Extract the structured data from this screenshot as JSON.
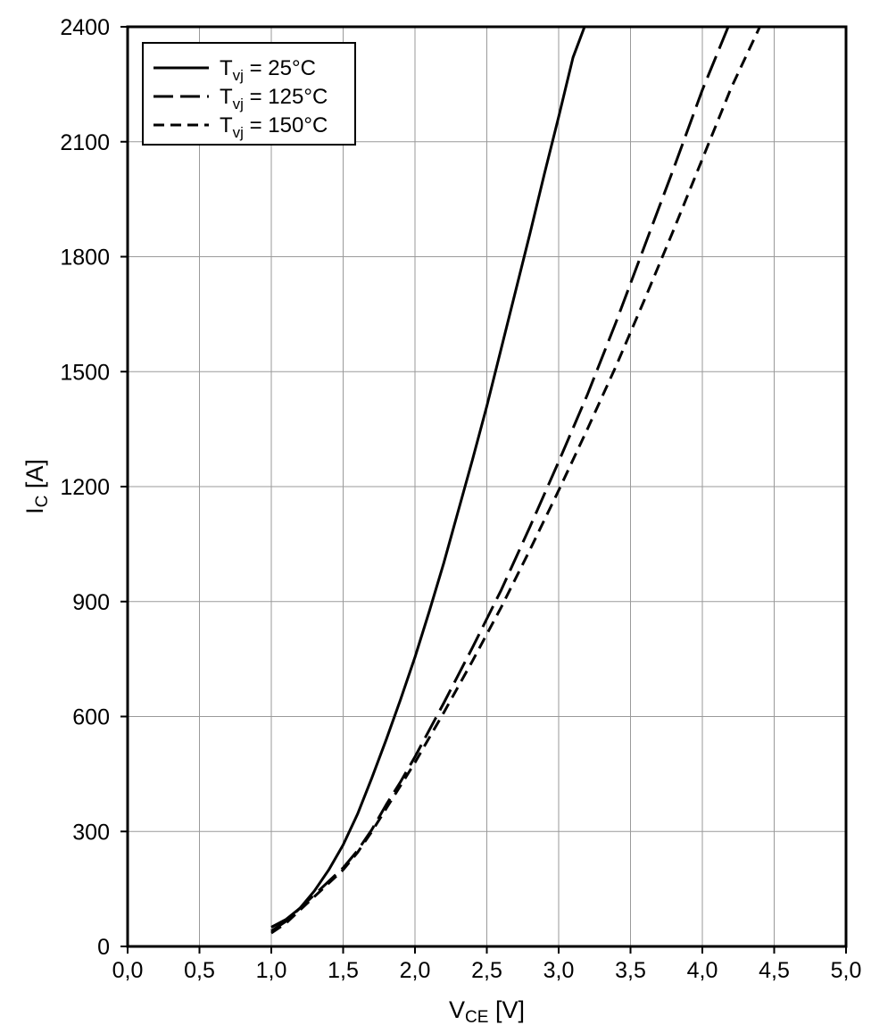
{
  "chart_data": {
    "type": "line",
    "xlabel_main": "V",
    "xlabel_sub": "CE",
    "xlabel_unit": " [V]",
    "ylabel_main": "I",
    "ylabel_sub": "C",
    "ylabel_unit": " [A]",
    "xlim": [
      0,
      5
    ],
    "ylim": [
      0,
      2400
    ],
    "x_ticks": [
      0,
      0.5,
      1,
      1.5,
      2,
      2.5,
      3,
      3.5,
      4,
      4.5,
      5
    ],
    "x_tick_labels": [
      "0,0",
      "0,5",
      "1,0",
      "1,5",
      "2,0",
      "2,5",
      "3,0",
      "3,5",
      "4,0",
      "4,5",
      "5,0"
    ],
    "y_ticks": [
      0,
      300,
      600,
      900,
      1200,
      1500,
      1800,
      2100,
      2400
    ],
    "y_tick_labels": [
      "0",
      "300",
      "600",
      "900",
      "1200",
      "1500",
      "1800",
      "2100",
      "2400"
    ],
    "grid": true,
    "legend_position": "top-left",
    "series": [
      {
        "name_main": "T",
        "name_sub": "vj",
        "name_rest": " = 25°C",
        "dash": "solid",
        "x": [
          1.0,
          1.1,
          1.2,
          1.3,
          1.4,
          1.5,
          1.6,
          1.7,
          1.8,
          1.9,
          2.0,
          2.1,
          2.2,
          2.3,
          2.4,
          2.5,
          2.6,
          2.7,
          2.8,
          2.9,
          3.0,
          3.1,
          3.18
        ],
        "y": [
          50,
          70,
          100,
          145,
          200,
          265,
          345,
          440,
          540,
          645,
          755,
          875,
          1000,
          1135,
          1270,
          1410,
          1560,
          1710,
          1860,
          2015,
          2165,
          2320,
          2400
        ]
      },
      {
        "name_main": "T",
        "name_sub": "vj",
        "name_rest": " = 125°C",
        "dash": "long-dash",
        "x": [
          1.0,
          1.1,
          1.2,
          1.3,
          1.4,
          1.5,
          1.6,
          1.7,
          1.8,
          1.9,
          2.0,
          2.2,
          2.4,
          2.6,
          2.8,
          3.0,
          3.2,
          3.4,
          3.6,
          3.8,
          4.0,
          4.18
        ],
        "y": [
          40,
          65,
          100,
          135,
          170,
          205,
          250,
          305,
          370,
          430,
          495,
          635,
          780,
          930,
          1095,
          1265,
          1440,
          1630,
          1830,
          2030,
          2235,
          2400
        ]
      },
      {
        "name_main": "T",
        "name_sub": "vj",
        "name_rest": " = 150°C",
        "dash": "short-dash",
        "x": [
          1.0,
          1.1,
          1.2,
          1.3,
          1.4,
          1.5,
          1.6,
          1.7,
          1.8,
          1.9,
          2.0,
          2.2,
          2.4,
          2.6,
          2.8,
          3.0,
          3.2,
          3.4,
          3.6,
          3.8,
          4.0,
          4.2,
          4.4
        ],
        "y": [
          35,
          60,
          95,
          130,
          165,
          200,
          245,
          300,
          360,
          420,
          480,
          610,
          745,
          885,
          1035,
          1190,
          1350,
          1515,
          1690,
          1870,
          2055,
          2240,
          2400
        ]
      }
    ]
  }
}
